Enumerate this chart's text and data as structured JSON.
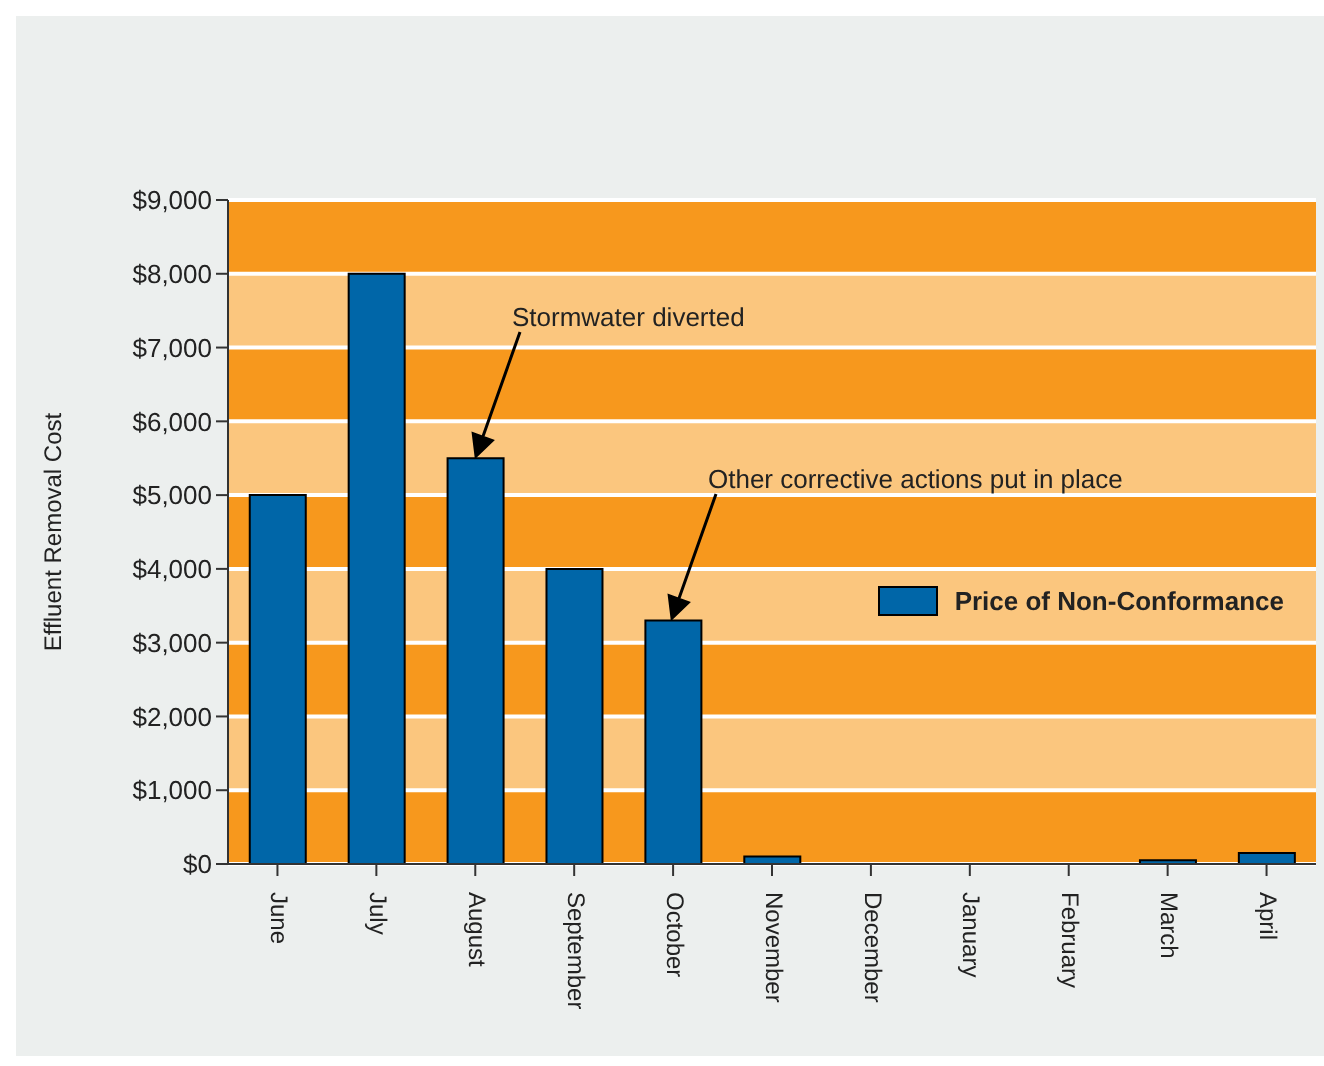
{
  "chart_data": {
    "type": "bar",
    "ylabel": "Effluent Removal Cost",
    "categories": [
      "June",
      "July",
      "August",
      "September",
      "October",
      "November",
      "December",
      "January",
      "February",
      "March",
      "April"
    ],
    "series": [
      {
        "name": "Price of Non-Conformance",
        "color": "#0066a8",
        "values": [
          5000,
          8000,
          5500,
          4000,
          3300,
          100,
          0,
          0,
          0,
          50,
          150
        ]
      }
    ],
    "ylim": [
      0,
      9000
    ],
    "yticks": [
      {
        "value": 0,
        "label": "$0"
      },
      {
        "value": 1000,
        "label": "$1,000"
      },
      {
        "value": 2000,
        "label": "$2,000"
      },
      {
        "value": 3000,
        "label": "$3,000"
      },
      {
        "value": 4000,
        "label": "$4,000"
      },
      {
        "value": 5000,
        "label": "$5,000"
      },
      {
        "value": 6000,
        "label": "$6,000"
      },
      {
        "value": 7000,
        "label": "$7,000"
      },
      {
        "value": 8000,
        "label": "$8,000"
      },
      {
        "value": 9000,
        "label": "$9,000"
      }
    ],
    "grid": "y",
    "legend": "right",
    "bands": [
      {
        "axis": "y",
        "from": 0,
        "to": 1000,
        "color": "#f7981d"
      },
      {
        "axis": "y",
        "from": 1000,
        "to": 2000,
        "color": "#fbc67e"
      },
      {
        "axis": "y",
        "from": 2000,
        "to": 3000,
        "color": "#f7981d"
      },
      {
        "axis": "y",
        "from": 3000,
        "to": 4000,
        "color": "#fbc67e"
      },
      {
        "axis": "y",
        "from": 4000,
        "to": 5000,
        "color": "#f7981d"
      },
      {
        "axis": "y",
        "from": 5000,
        "to": 6000,
        "color": "#fbc67e"
      },
      {
        "axis": "y",
        "from": 6000,
        "to": 7000,
        "color": "#f7981d"
      },
      {
        "axis": "y",
        "from": 7000,
        "to": 8000,
        "color": "#fbc67e"
      },
      {
        "axis": "y",
        "from": 8000,
        "to": 9000,
        "color": "#f7981d"
      }
    ],
    "annotations": [
      "Stormwater diverted",
      "Other corrective actions put in place"
    ]
  }
}
